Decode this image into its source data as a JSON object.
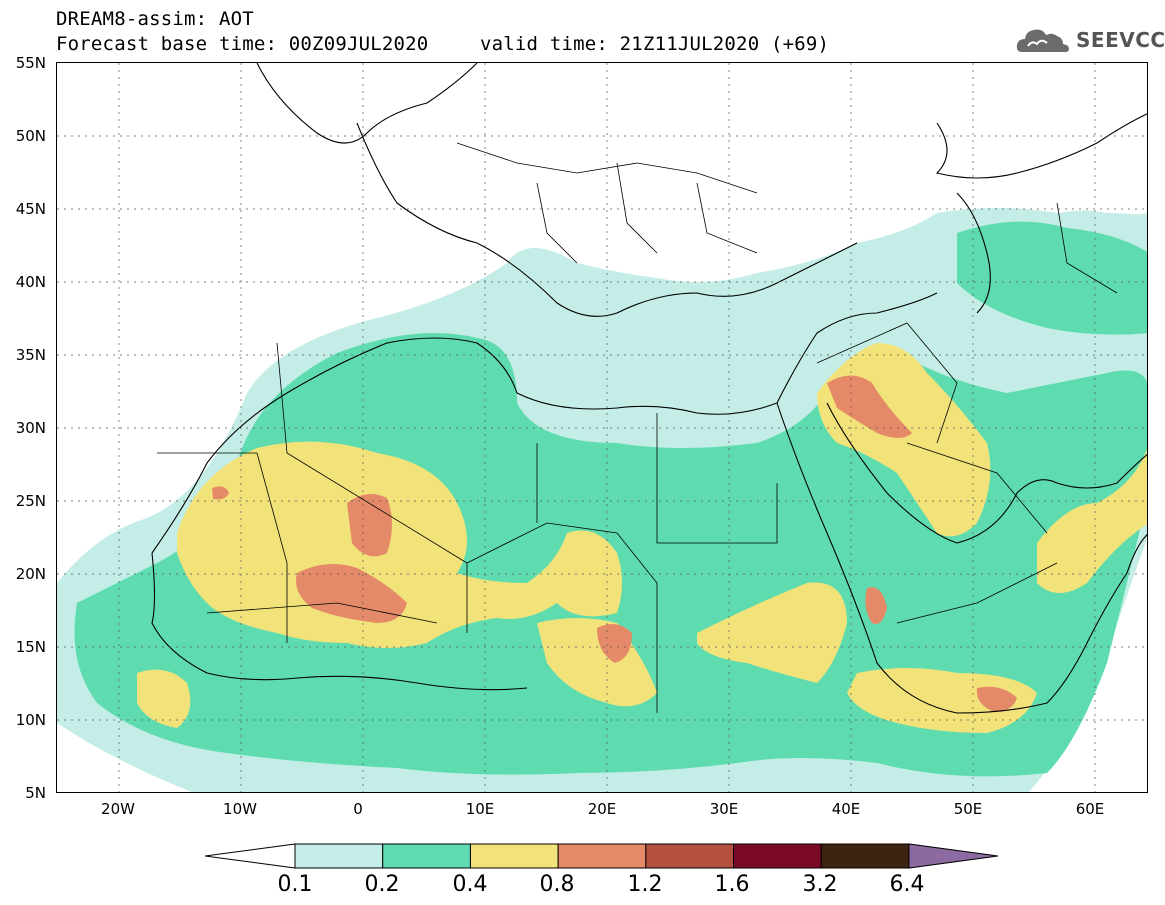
{
  "header": {
    "line1": "DREAM8-assim: AOT",
    "line2_base": "Forecast base time: 00Z09JUL2020",
    "line2_valid": "valid time: 21Z11JUL2020 (+69)"
  },
  "logo": {
    "text": "SEEVCCC",
    "icon": "cloud-icon"
  },
  "map": {
    "lat_labels": [
      "55N",
      "50N",
      "45N",
      "40N",
      "35N",
      "30N",
      "25N",
      "20N",
      "15N",
      "10N",
      "5N"
    ],
    "lon_labels": [
      "20W",
      "10W",
      "0",
      "10E",
      "20E",
      "30E",
      "40E",
      "50E",
      "60E"
    ],
    "colors": {
      "c01": "#c3ede6",
      "c02": "#5edcb0",
      "c04": "#f2e27a",
      "c08": "#e58a68",
      "c12": "#b35040",
      "c16": "#7a0a28",
      "c32": "#3d2410",
      "c64": "#8a6aa0"
    }
  },
  "colorbar": {
    "labels": [
      "0.1",
      "0.2",
      "0.4",
      "0.8",
      "1.2",
      "1.6",
      "3.2",
      "6.4"
    ],
    "colors": [
      "#c3ede6",
      "#5edcb0",
      "#f2e27a",
      "#e58a68",
      "#b35040",
      "#7a0a28",
      "#3d2410"
    ],
    "over_color": "#8a6aa0",
    "under_color": "#ffffff"
  }
}
